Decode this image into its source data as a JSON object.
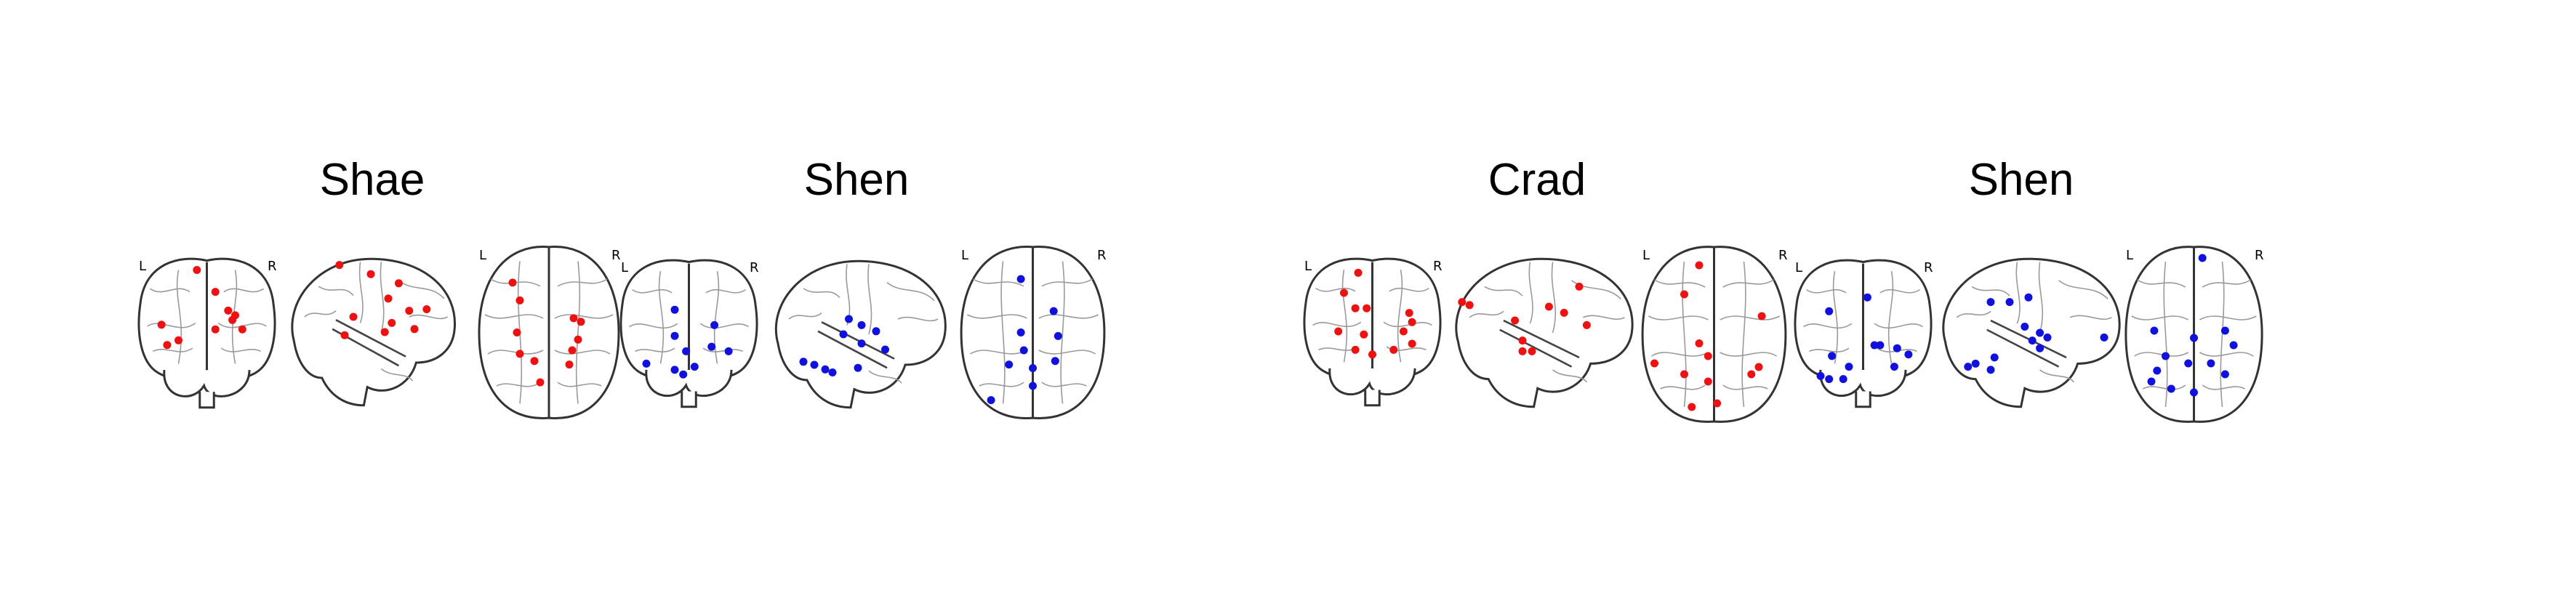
{
  "colors": {
    "red": "#ee1111",
    "blue": "#1111dd"
  },
  "groups": [
    {
      "title": "Shae",
      "color": "red",
      "views": [
        {
          "type": "coronal",
          "left_label": "L",
          "right_label": "R",
          "nodes": [
            [
              0.43,
              0.1
            ],
            [
              0.56,
              0.24
            ],
            [
              0.65,
              0.36
            ],
            [
              0.7,
              0.39
            ],
            [
              0.68,
              0.42
            ],
            [
              0.18,
              0.45
            ],
            [
              0.56,
              0.48
            ],
            [
              0.75,
              0.48
            ],
            [
              0.3,
              0.55
            ],
            [
              0.22,
              0.58
            ]
          ]
        },
        {
          "type": "sagittal",
          "nodes": [
            [
              0.32,
              0.06
            ],
            [
              0.5,
              0.12
            ],
            [
              0.66,
              0.18
            ],
            [
              0.6,
              0.28
            ],
            [
              0.72,
              0.36
            ],
            [
              0.82,
              0.35
            ],
            [
              0.4,
              0.4
            ],
            [
              0.62,
              0.44
            ],
            [
              0.58,
              0.5
            ],
            [
              0.35,
              0.52
            ],
            [
              0.75,
              0.48
            ]
          ]
        },
        {
          "type": "axial",
          "left_label": "L",
          "right_label": "R",
          "nodes": [
            [
              0.25,
              0.22
            ],
            [
              0.3,
              0.32
            ],
            [
              0.67,
              0.42
            ],
            [
              0.72,
              0.44
            ],
            [
              0.28,
              0.5
            ],
            [
              0.7,
              0.54
            ],
            [
              0.3,
              0.62
            ],
            [
              0.66,
              0.6
            ],
            [
              0.4,
              0.66
            ],
            [
              0.64,
              0.68
            ],
            [
              0.44,
              0.78
            ]
          ]
        }
      ]
    },
    {
      "title": "Shen",
      "color": "blue",
      "views": [
        {
          "type": "coronal",
          "left_label": "L",
          "right_label": "R",
          "nodes": [
            [
              0.4,
              0.35
            ],
            [
              0.68,
              0.45
            ],
            [
              0.4,
              0.52
            ],
            [
              0.66,
              0.59
            ],
            [
              0.48,
              0.62
            ],
            [
              0.78,
              0.62
            ],
            [
              0.2,
              0.7
            ],
            [
              0.54,
              0.72
            ],
            [
              0.4,
              0.74
            ],
            [
              0.46,
              0.77
            ]
          ]
        },
        {
          "type": "sagittal",
          "nodes": [
            [
              0.45,
              0.4
            ],
            [
              0.52,
              0.44
            ],
            [
              0.6,
              0.48
            ],
            [
              0.42,
              0.5
            ],
            [
              0.52,
              0.56
            ],
            [
              0.65,
              0.6
            ],
            [
              0.2,
              0.68
            ],
            [
              0.26,
              0.7
            ],
            [
              0.32,
              0.73
            ],
            [
              0.36,
              0.75
            ],
            [
              0.5,
              0.72
            ]
          ]
        },
        {
          "type": "axial",
          "left_label": "L",
          "right_label": "R",
          "nodes": [
            [
              0.42,
              0.2
            ],
            [
              0.64,
              0.38
            ],
            [
              0.42,
              0.5
            ],
            [
              0.67,
              0.52
            ],
            [
              0.44,
              0.6
            ],
            [
              0.34,
              0.68
            ],
            [
              0.5,
              0.7
            ],
            [
              0.65,
              0.66
            ],
            [
              0.5,
              0.8
            ],
            [
              0.22,
              0.88
            ]
          ]
        }
      ]
    },
    {
      "title": "Crad",
      "color": "red",
      "views": [
        {
          "type": "coronal",
          "left_label": "L",
          "right_label": "R",
          "nodes": [
            [
              0.4,
              0.12
            ],
            [
              0.3,
              0.25
            ],
            [
              0.38,
              0.35
            ],
            [
              0.46,
              0.35
            ],
            [
              0.76,
              0.38
            ],
            [
              0.78,
              0.44
            ],
            [
              0.26,
              0.5
            ],
            [
              0.44,
              0.52
            ],
            [
              0.72,
              0.5
            ],
            [
              0.78,
              0.58
            ],
            [
              0.38,
              0.62
            ],
            [
              0.5,
              0.65
            ],
            [
              0.65,
              0.62
            ]
          ]
        },
        {
          "type": "sagittal",
          "nodes": [
            [
              0.08,
              0.3
            ],
            [
              0.12,
              0.32
            ],
            [
              0.7,
              0.2
            ],
            [
              0.54,
              0.33
            ],
            [
              0.62,
              0.37
            ],
            [
              0.36,
              0.42
            ],
            [
              0.74,
              0.45
            ],
            [
              0.4,
              0.55
            ],
            [
              0.4,
              0.62
            ],
            [
              0.45,
              0.62
            ]
          ]
        },
        {
          "type": "axial",
          "left_label": "L",
          "right_label": "R",
          "nodes": [
            [
              0.4,
              0.12
            ],
            [
              0.3,
              0.28
            ],
            [
              0.82,
              0.4
            ],
            [
              0.4,
              0.55
            ],
            [
              0.8,
              0.68
            ],
            [
              0.75,
              0.72
            ],
            [
              0.1,
              0.66
            ],
            [
              0.46,
              0.62
            ],
            [
              0.3,
              0.72
            ],
            [
              0.46,
              0.76
            ],
            [
              0.52,
              0.88
            ],
            [
              0.35,
              0.9
            ]
          ]
        }
      ]
    },
    {
      "title": "Shen",
      "color": "blue",
      "views": [
        {
          "type": "coronal",
          "left_label": "L",
          "right_label": "R",
          "nodes": [
            [
              0.26,
              0.36
            ],
            [
              0.53,
              0.27
            ],
            [
              0.58,
              0.58
            ],
            [
              0.62,
              0.58
            ],
            [
              0.74,
              0.6
            ],
            [
              0.28,
              0.65
            ],
            [
              0.82,
              0.64
            ],
            [
              0.72,
              0.72
            ],
            [
              0.4,
              0.72
            ],
            [
              0.2,
              0.78
            ],
            [
              0.26,
              0.8
            ],
            [
              0.36,
              0.8
            ]
          ]
        },
        {
          "type": "sagittal",
          "nodes": [
            [
              0.3,
              0.3
            ],
            [
              0.4,
              0.3
            ],
            [
              0.5,
              0.27
            ],
            [
              0.48,
              0.46
            ],
            [
              0.56,
              0.5
            ],
            [
              0.52,
              0.55
            ],
            [
              0.6,
              0.53
            ],
            [
              0.56,
              0.6
            ],
            [
              0.9,
              0.53
            ],
            [
              0.18,
              0.72
            ],
            [
              0.22,
              0.7
            ],
            [
              0.32,
              0.66
            ],
            [
              0.3,
              0.74
            ]
          ]
        },
        {
          "type": "axial",
          "left_label": "L",
          "right_label": "R",
          "nodes": [
            [
              0.56,
              0.08
            ],
            [
              0.22,
              0.48
            ],
            [
              0.72,
              0.48
            ],
            [
              0.5,
              0.52
            ],
            [
              0.78,
              0.56
            ],
            [
              0.3,
              0.62
            ],
            [
              0.46,
              0.66
            ],
            [
              0.24,
              0.7
            ],
            [
              0.62,
              0.66
            ],
            [
              0.5,
              0.82
            ],
            [
              0.72,
              0.72
            ],
            [
              0.34,
              0.8
            ],
            [
              0.2,
              0.76
            ]
          ]
        }
      ]
    }
  ]
}
